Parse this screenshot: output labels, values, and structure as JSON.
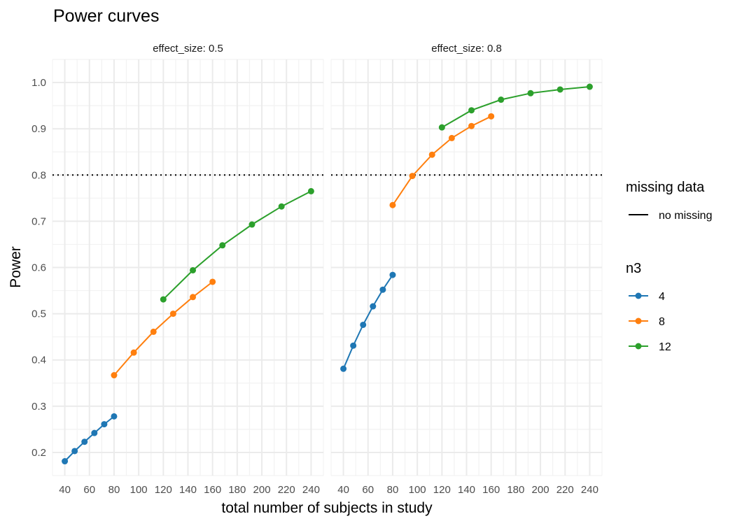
{
  "chart_data": {
    "type": "line",
    "title": "Power curves",
    "xlabel": "total number of subjects in study",
    "ylabel": "Power",
    "xlim": [
      30,
      250
    ],
    "ylim": [
      0.15,
      1.05
    ],
    "x_ticks": [
      40,
      60,
      80,
      100,
      120,
      140,
      160,
      180,
      200,
      220,
      240
    ],
    "y_ticks": [
      0.2,
      0.3,
      0.4,
      0.5,
      0.6,
      0.7,
      0.8,
      0.9,
      1.0
    ],
    "y_tick_labels": [
      "0.2",
      "0.3",
      "0.4",
      "0.5",
      "0.6",
      "0.7",
      "0.8",
      "0.9",
      "1.0"
    ],
    "reference_line": {
      "y": 0.8,
      "style": "dotted"
    },
    "grid": true,
    "legend_placement": "right",
    "legends": [
      {
        "title": "missing data",
        "entries": [
          {
            "label": "no missing",
            "style": "line"
          }
        ]
      },
      {
        "title": "n3",
        "entries": [
          {
            "label": "4",
            "color": "#1f77b4"
          },
          {
            "label": "8",
            "color": "#ff7f0e"
          },
          {
            "label": "12",
            "color": "#2ca02c"
          }
        ]
      }
    ],
    "facets": [
      {
        "label": "effect_size: 0.5",
        "series": [
          {
            "name": "4",
            "color": "#1f77b4",
            "x": [
              40,
              48,
              56,
              64,
              72,
              80
            ],
            "y": [
              0.181,
              0.203,
              0.223,
              0.242,
              0.261,
              0.278
            ]
          },
          {
            "name": "8",
            "color": "#ff7f0e",
            "x": [
              80,
              96,
              112,
              128,
              144,
              160
            ],
            "y": [
              0.367,
              0.416,
              0.461,
              0.5,
              0.536,
              0.569
            ]
          },
          {
            "name": "12",
            "color": "#2ca02c",
            "x": [
              120,
              144,
              168,
              192,
              216,
              240
            ],
            "y": [
              0.531,
              0.594,
              0.648,
              0.693,
              0.732,
              0.765
            ]
          }
        ]
      },
      {
        "label": "effect_size: 0.8",
        "series": [
          {
            "name": "4",
            "color": "#1f77b4",
            "x": [
              40,
              48,
              56,
              64,
              72,
              80
            ],
            "y": [
              0.381,
              0.431,
              0.476,
              0.516,
              0.552,
              0.584
            ]
          },
          {
            "name": "8",
            "color": "#ff7f0e",
            "x": [
              80,
              96,
              112,
              128,
              144,
              160
            ],
            "y": [
              0.735,
              0.798,
              0.844,
              0.88,
              0.906,
              0.927
            ]
          },
          {
            "name": "12",
            "color": "#2ca02c",
            "x": [
              120,
              144,
              168,
              192,
              216,
              240
            ],
            "y": [
              0.903,
              0.94,
              0.963,
              0.977,
              0.985,
              0.991
            ]
          }
        ]
      }
    ]
  }
}
